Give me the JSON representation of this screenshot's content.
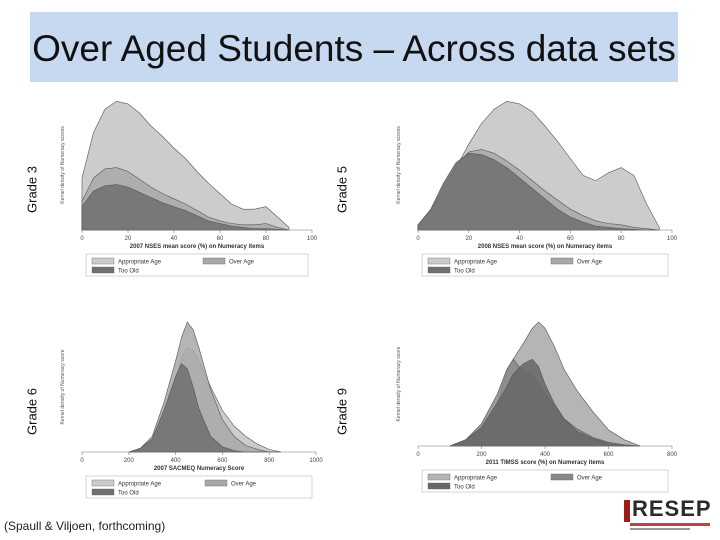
{
  "title": "Over Aged Students – Across data sets",
  "citation": "(Spaull & Viljoen, forthcoming)",
  "logo": {
    "text": "RESEP"
  },
  "panels": [
    {
      "grade_label": "Grade 3",
      "ylabel": "Kernel density of Numeracy scores"
    },
    {
      "grade_label": "Grade 5",
      "ylabel": "Kernel density of Numeracy scores"
    },
    {
      "grade_label": "Grade 6",
      "ylabel": "Kernel density of Numeracy score"
    },
    {
      "grade_label": "Grade 9",
      "ylabel": "Kernel density of Numeracy score"
    }
  ],
  "chart_data": [
    {
      "type": "area",
      "xlabel": "2007 NSES mean score (%) on Numeracy items",
      "xlim": [
        0,
        100
      ],
      "ylim": [
        0,
        1
      ],
      "xticks": [
        0,
        20,
        40,
        60,
        80,
        100
      ],
      "legend": [
        "Appropriate Age",
        "Over Age",
        "Too Old"
      ],
      "legend_position": "bottom",
      "x": [
        0,
        5,
        10,
        15,
        20,
        25,
        30,
        35,
        40,
        45,
        50,
        55,
        60,
        65,
        70,
        75,
        80,
        85,
        90
      ],
      "series": [
        {
          "name": "Appropriate Age",
          "color": "#cccccc",
          "values": [
            0.4,
            0.75,
            0.93,
            0.99,
            0.97,
            0.9,
            0.8,
            0.72,
            0.63,
            0.55,
            0.45,
            0.36,
            0.28,
            0.2,
            0.16,
            0.16,
            0.18,
            0.1,
            0.02
          ]
        },
        {
          "name": "Over Age",
          "color": "#a8a8a8",
          "values": [
            0.22,
            0.4,
            0.47,
            0.48,
            0.45,
            0.39,
            0.33,
            0.28,
            0.24,
            0.2,
            0.15,
            0.1,
            0.07,
            0.05,
            0.04,
            0.04,
            0.05,
            0.02,
            0
          ]
        },
        {
          "name": "Too Old",
          "color": "#6f6f6f",
          "values": [
            0.18,
            0.3,
            0.34,
            0.35,
            0.33,
            0.29,
            0.25,
            0.21,
            0.18,
            0.15,
            0.11,
            0.07,
            0.05,
            0.03,
            0.02,
            0.01,
            0.01,
            0.005,
            0
          ]
        }
      ]
    },
    {
      "type": "area",
      "xlabel": "2008 NSES mean score (%) on Numeracy items",
      "xlim": [
        0,
        100
      ],
      "ylim": [
        0,
        1
      ],
      "xticks": [
        0,
        20,
        40,
        60,
        80,
        100
      ],
      "legend": [
        "Appropriate Age",
        "Over Age",
        "Too Old"
      ],
      "legend_position": "bottom",
      "x": [
        0,
        5,
        10,
        15,
        20,
        25,
        30,
        35,
        40,
        45,
        50,
        55,
        60,
        65,
        70,
        75,
        80,
        85,
        90,
        95
      ],
      "series": [
        {
          "name": "Appropriate Age",
          "color": "#cccccc",
          "values": [
            0.04,
            0.15,
            0.3,
            0.48,
            0.66,
            0.82,
            0.93,
            0.99,
            0.97,
            0.91,
            0.8,
            0.68,
            0.55,
            0.42,
            0.38,
            0.44,
            0.48,
            0.42,
            0.2,
            0.02
          ]
        },
        {
          "name": "Over Age",
          "color": "#a8a8a8",
          "values": [
            0.04,
            0.15,
            0.33,
            0.5,
            0.6,
            0.62,
            0.59,
            0.53,
            0.46,
            0.38,
            0.3,
            0.23,
            0.16,
            0.11,
            0.07,
            0.05,
            0.04,
            0.02,
            0.01,
            0
          ]
        },
        {
          "name": "Too Old",
          "color": "#6f6f6f",
          "values": [
            0.04,
            0.16,
            0.36,
            0.52,
            0.59,
            0.58,
            0.54,
            0.48,
            0.4,
            0.32,
            0.24,
            0.16,
            0.1,
            0.06,
            0.03,
            0.02,
            0.01,
            0.005,
            0,
            0
          ]
        }
      ]
    },
    {
      "type": "area",
      "xlabel": "2007 SACMEQ Numeracy Score",
      "xlim": [
        0,
        1000
      ],
      "ylim": [
        0,
        1
      ],
      "xticks": [
        0,
        200,
        400,
        600,
        800,
        1000
      ],
      "legend": [
        "Appropriate Age",
        "Over Age",
        "Too Old"
      ],
      "legend_position": "bottom",
      "x": [
        200,
        250,
        300,
        350,
        400,
        425,
        450,
        475,
        500,
        550,
        600,
        650,
        700,
        750,
        800,
        850
      ],
      "series": [
        {
          "name": "Appropriate Age",
          "color": "#cccccc",
          "values": [
            0,
            0.02,
            0.08,
            0.25,
            0.55,
            0.72,
            0.8,
            0.78,
            0.7,
            0.5,
            0.32,
            0.2,
            0.12,
            0.06,
            0.02,
            0
          ]
        },
        {
          "name": "Over Age",
          "color": "#a8a8a8",
          "values": [
            0,
            0.03,
            0.12,
            0.38,
            0.7,
            0.88,
            1.0,
            0.94,
            0.8,
            0.48,
            0.25,
            0.12,
            0.05,
            0.02,
            0,
            0
          ]
        },
        {
          "name": "Too Old",
          "color": "#6f6f6f",
          "values": [
            0,
            0.03,
            0.1,
            0.32,
            0.58,
            0.68,
            0.64,
            0.5,
            0.33,
            0.12,
            0.04,
            0.01,
            0,
            0,
            0,
            0
          ]
        }
      ]
    },
    {
      "type": "area",
      "xlabel": "2011 TIMSS score (%) on Numeracy items",
      "xlim": [
        0,
        800
      ],
      "ylim": [
        0,
        1
      ],
      "xticks": [
        0,
        200,
        400,
        600,
        800
      ],
      "legend": [
        "Appropriate Age",
        "Over Age",
        "Too Old"
      ],
      "legend_position": "bottom",
      "x": [
        100,
        150,
        200,
        250,
        280,
        300,
        330,
        360,
        380,
        400,
        430,
        460,
        500,
        550,
        600,
        650,
        700
      ],
      "series": [
        {
          "name": "Appropriate Age",
          "color": "#b5b5b5",
          "values": [
            0,
            0.05,
            0.15,
            0.35,
            0.6,
            0.7,
            0.82,
            0.95,
            1.0,
            0.95,
            0.8,
            0.62,
            0.45,
            0.28,
            0.13,
            0.05,
            0
          ]
        },
        {
          "name": "Over Age",
          "color": "#888888",
          "values": [
            0,
            0.05,
            0.18,
            0.42,
            0.62,
            0.7,
            0.6,
            0.58,
            0.5,
            0.42,
            0.32,
            0.22,
            0.14,
            0.07,
            0.03,
            0.01,
            0
          ]
        },
        {
          "name": "Too Old",
          "color": "#666666",
          "values": [
            0,
            0.05,
            0.15,
            0.35,
            0.48,
            0.58,
            0.66,
            0.7,
            0.64,
            0.5,
            0.34,
            0.22,
            0.12,
            0.06,
            0.02,
            0.005,
            0
          ]
        }
      ]
    }
  ]
}
